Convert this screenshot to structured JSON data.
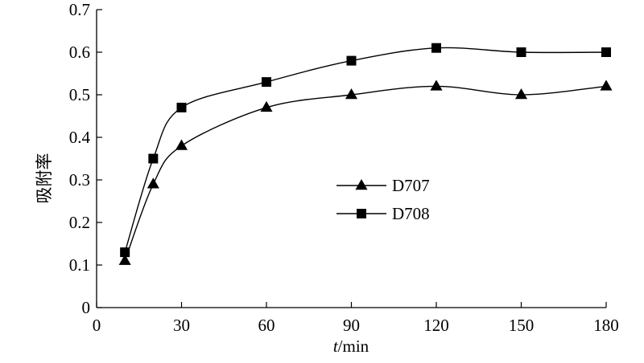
{
  "chart_data": {
    "type": "line",
    "ylabel": "吸附率",
    "xlabel_italic": "t",
    "xlabel_unit": "/min",
    "xlim": [
      0,
      180
    ],
    "ylim": [
      0,
      0.7
    ],
    "x_ticks": [
      0,
      30,
      60,
      90,
      120,
      150,
      180
    ],
    "x_tick_labels": [
      "0",
      "30",
      "60",
      "90",
      "120",
      "150",
      "180"
    ],
    "y_ticks": [
      0,
      0.1,
      0.2,
      0.3,
      0.4,
      0.5,
      0.6,
      0.7
    ],
    "y_tick_labels": [
      "0",
      "0.1",
      "0.2",
      "0.3",
      "0.4",
      "0.5",
      "0.6",
      "0.7"
    ],
    "grid": false,
    "legend_position": "center",
    "x": [
      10,
      20,
      30,
      60,
      90,
      120,
      150,
      180
    ],
    "series": [
      {
        "name": "D707",
        "marker": "triangle",
        "color": "#000000",
        "values": [
          0.11,
          0.29,
          0.38,
          0.47,
          0.5,
          0.52,
          0.5,
          0.52
        ]
      },
      {
        "name": "D708",
        "marker": "square",
        "color": "#000000",
        "values": [
          0.13,
          0.35,
          0.47,
          0.53,
          0.58,
          0.61,
          0.6,
          0.6
        ]
      }
    ]
  }
}
